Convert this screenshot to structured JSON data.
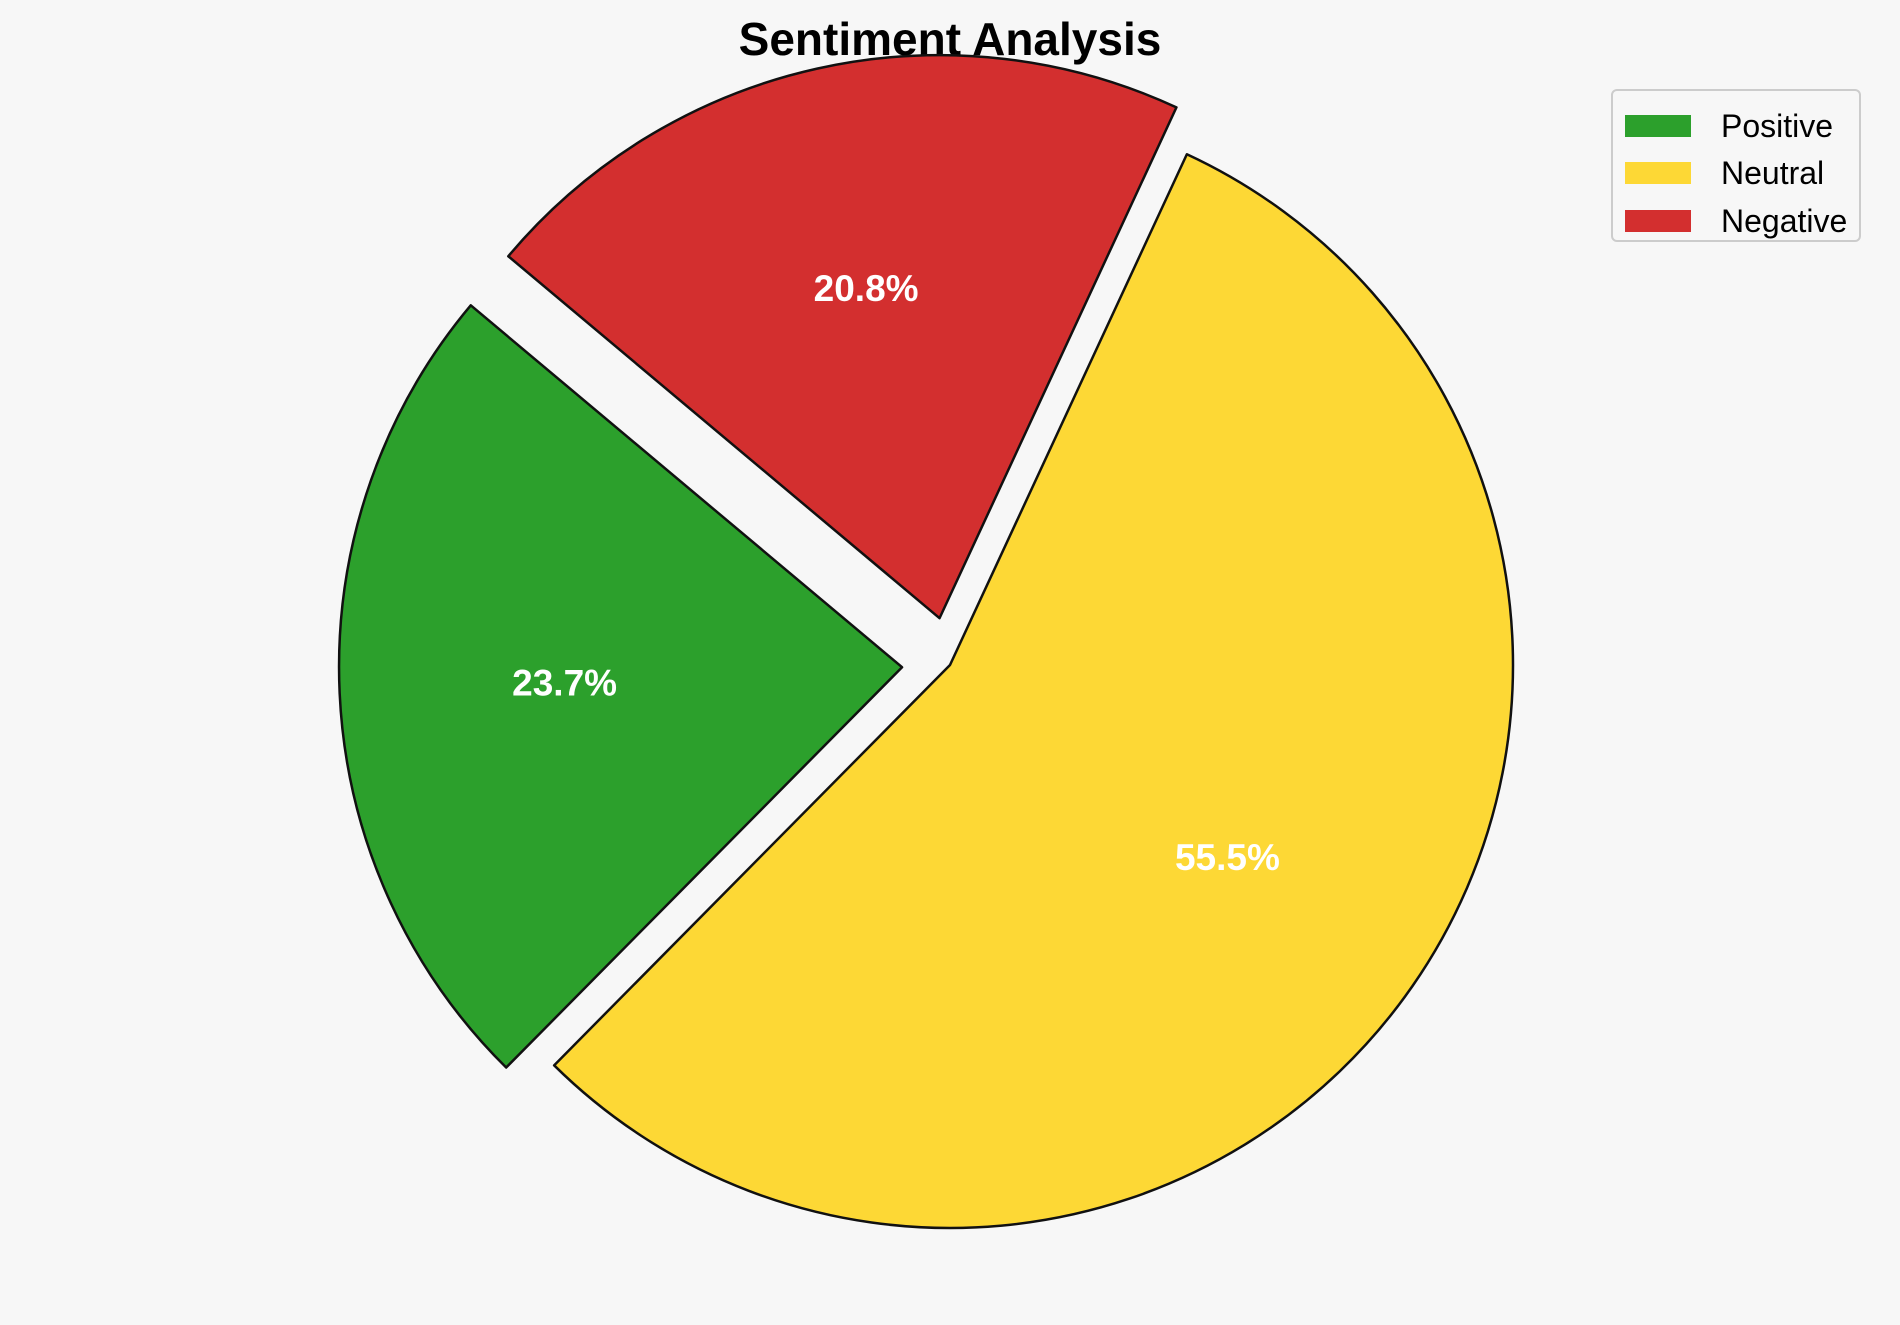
{
  "chart_data": {
    "type": "pie",
    "title": "Sentiment Analysis",
    "categories": [
      "Positive",
      "Neutral",
      "Negative"
    ],
    "values": [
      23.7,
      55.5,
      20.8
    ],
    "labels": [
      "23.7%",
      "55.5%",
      "20.8%"
    ],
    "colors": [
      "#2ca02c",
      "#fdd835",
      "#d32f2f"
    ],
    "legend_placement": "top-right",
    "grid": false
  },
  "legend": {
    "items": [
      {
        "label": "Positive",
        "color": "#2ca02c"
      },
      {
        "label": "Neutral",
        "color": "#fdd835"
      },
      {
        "label": "Negative",
        "color": "#d32f2f"
      }
    ]
  }
}
